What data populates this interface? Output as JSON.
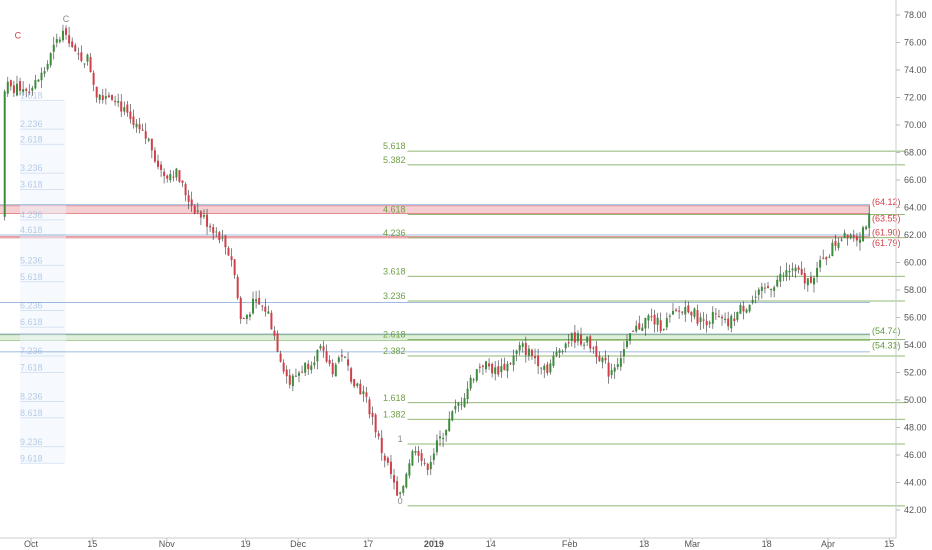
{
  "chart_data": {
    "type": "candlestick",
    "y_axis": {
      "ticks": [
        "42.00",
        "44.00",
        "46.00",
        "48.00",
        "50.00",
        "52.00",
        "54.00",
        "56.00",
        "58.00",
        "60.00",
        "62.00",
        "64.00",
        "66.00",
        "68.00",
        "70.00",
        "72.00",
        "74.00",
        "76.00",
        "78.00"
      ],
      "range": [
        41.2,
        78.8
      ],
      "side": "right"
    },
    "x_axis": {
      "ticks": [
        {
          "label": "Oct",
          "day": 0,
          "bold": false
        },
        {
          "label": "15",
          "day": 14,
          "bold": false
        },
        {
          "label": "Nov",
          "day": 31,
          "bold": false
        },
        {
          "label": "19",
          "day": 49,
          "bold": false
        },
        {
          "label": "Dec",
          "day": 61,
          "bold": false
        },
        {
          "label": "17",
          "day": 77,
          "bold": false
        },
        {
          "label": "2019",
          "day": 92,
          "bold": true
        },
        {
          "label": "14",
          "day": 105,
          "bold": false
        },
        {
          "label": "Feb",
          "day": 123,
          "bold": false
        },
        {
          "label": "18",
          "day": 140,
          "bold": false
        },
        {
          "label": "Mar",
          "day": 151,
          "bold": false
        },
        {
          "label": "18",
          "day": 168,
          "bold": false
        },
        {
          "label": "Apr",
          "day": 182,
          "bold": false
        },
        {
          "label": "15",
          "day": 196,
          "bold": false
        }
      ]
    },
    "price_path": [
      [
        0,
        72.6
      ],
      [
        3,
        73.9
      ],
      [
        6,
        76.1
      ],
      [
        8,
        77.0
      ],
      [
        10,
        75.0
      ],
      [
        13,
        74.8
      ],
      [
        15,
        72.3
      ],
      [
        19,
        72.2
      ],
      [
        23,
        70.0
      ],
      [
        27,
        68.8
      ],
      [
        30,
        66.4
      ],
      [
        33,
        66.6
      ],
      [
        35,
        65.2
      ],
      [
        37,
        64.1
      ],
      [
        40,
        63.0
      ],
      [
        43,
        62.0
      ],
      [
        46,
        60.2
      ],
      [
        48,
        55.6
      ],
      [
        51,
        57.1
      ],
      [
        54,
        56.5
      ],
      [
        57,
        53.1
      ],
      [
        59,
        51.2
      ],
      [
        61,
        52.0
      ],
      [
        63,
        52.6
      ],
      [
        66,
        53.6
      ],
      [
        69,
        52.2
      ],
      [
        71,
        53.4
      ],
      [
        73,
        51.8
      ],
      [
        76,
        50.4
      ],
      [
        78,
        48.7
      ],
      [
        80,
        46.4
      ],
      [
        82,
        44.8
      ],
      [
        84,
        42.4
      ],
      [
        86,
        45.3
      ],
      [
        88,
        46.8
      ],
      [
        90,
        44.9
      ],
      [
        93,
        46.9
      ],
      [
        96,
        48.8
      ],
      [
        99,
        50.4
      ],
      [
        101,
        51.8
      ],
      [
        103,
        52.7
      ],
      [
        106,
        52.1
      ],
      [
        109,
        52.6
      ],
      [
        112,
        53.9
      ],
      [
        115,
        53.1
      ],
      [
        118,
        52.3
      ],
      [
        121,
        53.9
      ],
      [
        124,
        54.6
      ],
      [
        127,
        54.2
      ],
      [
        130,
        53.2
      ],
      [
        132,
        52.0
      ],
      [
        135,
        53.4
      ],
      [
        138,
        55.1
      ],
      [
        141,
        56.0
      ],
      [
        144,
        55.4
      ],
      [
        147,
        56.2
      ],
      [
        150,
        56.8
      ],
      [
        153,
        55.7
      ],
      [
        156,
        56.1
      ],
      [
        159,
        55.4
      ],
      [
        162,
        56.6
      ],
      [
        165,
        57.3
      ],
      [
        168,
        58.1
      ],
      [
        171,
        58.9
      ],
      [
        174,
        59.6
      ],
      [
        177,
        58.5
      ],
      [
        180,
        59.7
      ],
      [
        183,
        61.1
      ],
      [
        186,
        62.3
      ],
      [
        189,
        61.9
      ],
      [
        191,
        63.1
      ],
      [
        192,
        63.3
      ]
    ],
    "left_fib": {
      "color": "#7fa6d6",
      "levels": [
        {
          "label": "1.618",
          "y": 71.8
        },
        {
          "label": "2.236",
          "y": 69.7
        },
        {
          "label": "2.618",
          "y": 68.6
        },
        {
          "label": "3.236",
          "y": 66.5
        },
        {
          "label": "3.618",
          "y": 65.3
        },
        {
          "label": "4.236",
          "y": 63.1
        },
        {
          "label": "4.618",
          "y": 62.0
        },
        {
          "label": "5.236",
          "y": 59.8
        },
        {
          "label": "5.618",
          "y": 58.6
        },
        {
          "label": "6.236",
          "y": 56.5
        },
        {
          "label": "6.618",
          "y": 55.3
        },
        {
          "label": "7.236",
          "y": 53.2
        },
        {
          "label": "7.618",
          "y": 52.0
        },
        {
          "label": "8.236",
          "y": 49.9
        },
        {
          "label": "8.618",
          "y": 48.7
        },
        {
          "label": "9.236",
          "y": 46.6
        },
        {
          "label": "9.618",
          "y": 45.4
        }
      ]
    },
    "right_fib": {
      "color": "#6fa046",
      "start_day": 86,
      "levels": [
        {
          "label": "0",
          "y": 42.3
        },
        {
          "label": "1",
          "y": 46.8
        },
        {
          "label": "1.382",
          "y": 48.6
        },
        {
          "label": "1.618",
          "y": 49.8
        },
        {
          "label": "2.382",
          "y": 53.2
        },
        {
          "label": "2.618",
          "y": 54.4
        },
        {
          "label": "3.236",
          "y": 57.2
        },
        {
          "label": "3.618",
          "y": 59.0
        },
        {
          "label": "4.236",
          "y": 61.8
        },
        {
          "label": "4.618",
          "y": 63.5
        },
        {
          "label": "5.382",
          "y": 67.1
        },
        {
          "label": "5.618",
          "y": 68.1
        }
      ]
    },
    "zones": [
      {
        "top": 64.12,
        "bottom": 63.55,
        "color": "#f3c3c7",
        "labels": [
          "(64.12)",
          "(63.55)"
        ],
        "label_color": "#d0404a"
      },
      {
        "top": 61.9,
        "bottom": 61.79,
        "color": "#f3c3c7",
        "labels": [
          "(61.90)",
          "(61.79)"
        ],
        "label_color": "#d0404a"
      },
      {
        "top": 54.74,
        "bottom": 54.31,
        "color": "#d6ecd0",
        "labels": [
          "(54.74)",
          "(54.31)"
        ],
        "label_color": "#5e9a3a"
      }
    ],
    "blue_lines": [
      64.2,
      62.0,
      57.1,
      54.8,
      53.5
    ],
    "markers": [
      {
        "label": "C",
        "day": 8,
        "y": 77.5,
        "color": "#888888"
      },
      {
        "label": "C",
        "day": -3,
        "y": 76.3,
        "color": "#d0404a"
      }
    ],
    "colors": {
      "up": "#3c8c3c",
      "down": "#d0404a",
      "grid": "#dddddd"
    }
  }
}
